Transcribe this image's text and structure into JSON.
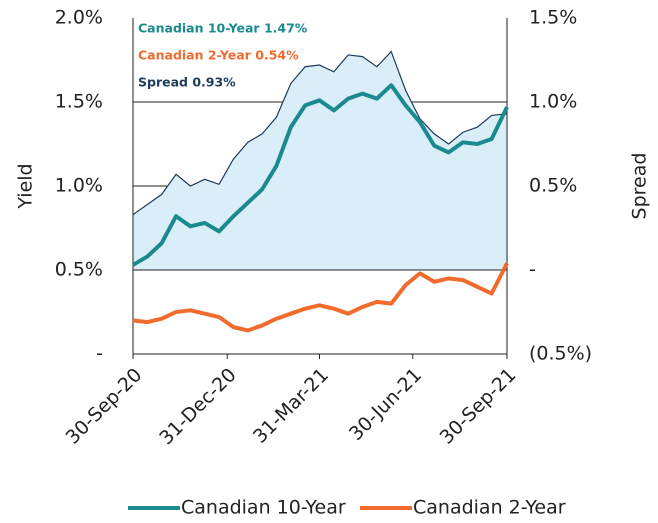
{
  "chart_data": {
    "type": "line",
    "y_label": "Yield",
    "y2_label": "Spread",
    "annotations": [
      {
        "text": "Canadian 10-Year 1.47%",
        "color": "#1a8a8f"
      },
      {
        "text": "Canadian 2-Year 0.54%",
        "color": "#f26b2d"
      },
      {
        "text": "Spread 0.93%",
        "color": "#1f3b5a"
      }
    ],
    "x": [
      "30-Sep-20",
      "14-Oct-20",
      "28-Oct-20",
      "11-Nov-20",
      "25-Nov-20",
      "9-Dec-20",
      "23-Dec-20",
      "6-Jan-21",
      "20-Jan-21",
      "3-Feb-21",
      "17-Feb-21",
      "3-Mar-21",
      "17-Mar-21",
      "31-Mar-21",
      "14-Apr-21",
      "28-Apr-21",
      "12-May-21",
      "26-May-21",
      "9-Jun-21",
      "23-Jun-21",
      "7-Jul-21",
      "21-Jul-21",
      "4-Aug-21",
      "18-Aug-21",
      "1-Sep-21",
      "15-Sep-21",
      "30-Sep-21"
    ],
    "series": [
      {
        "name": "Canadian 10-Year",
        "color": "#1a8a8f",
        "values": [
          0.53,
          0.58,
          0.66,
          0.82,
          0.76,
          0.78,
          0.73,
          0.82,
          0.9,
          0.98,
          1.12,
          1.35,
          1.48,
          1.51,
          1.45,
          1.52,
          1.55,
          1.52,
          1.6,
          1.48,
          1.38,
          1.24,
          1.2,
          1.26,
          1.25,
          1.28,
          1.47
        ]
      },
      {
        "name": "Canadian 2-Year",
        "color": "#f26b2d",
        "values": [
          0.2,
          0.19,
          0.21,
          0.25,
          0.26,
          0.24,
          0.22,
          0.16,
          0.14,
          0.17,
          0.21,
          0.24,
          0.27,
          0.29,
          0.27,
          0.24,
          0.28,
          0.31,
          0.3,
          0.41,
          0.48,
          0.43,
          0.45,
          0.44,
          0.4,
          0.36,
          0.54
        ]
      }
    ],
    "spread": {
      "axis": "y2",
      "color": "#1f3b5a",
      "fill": "#d9eef8",
      "values": [
        0.33,
        0.39,
        0.45,
        0.57,
        0.5,
        0.54,
        0.51,
        0.66,
        0.76,
        0.81,
        0.91,
        1.11,
        1.21,
        1.22,
        1.18,
        1.28,
        1.27,
        1.21,
        1.3,
        1.07,
        0.9,
        0.81,
        0.75,
        0.82,
        0.85,
        0.92,
        0.93
      ]
    },
    "xlim": [
      "30-Sep-20",
      "30-Sep-21"
    ],
    "xticks": [
      "30-Sep-20",
      "31-Dec-20",
      "31-Mar-21",
      "30-Jun-21",
      "30-Sep-21"
    ],
    "ylim": [
      0,
      2.0
    ],
    "yticks": [
      {
        "value": 0,
        "label": "-"
      },
      {
        "value": 0.5,
        "label": "0.5%"
      },
      {
        "value": 1.0,
        "label": "1.0%"
      },
      {
        "value": 1.5,
        "label": "1.5%"
      },
      {
        "value": 2.0,
        "label": "2.0%"
      }
    ],
    "y2lim": [
      -0.5,
      1.5
    ],
    "y2ticks": [
      {
        "value": -0.5,
        "label": "(0.5%)"
      },
      {
        "value": 0,
        "label": "-"
      },
      {
        "value": 0.5,
        "label": "0.5%"
      },
      {
        "value": 1.0,
        "label": "1.0%"
      },
      {
        "value": 1.5,
        "label": "1.5%"
      }
    ],
    "grid": true,
    "legend": "bottom"
  }
}
